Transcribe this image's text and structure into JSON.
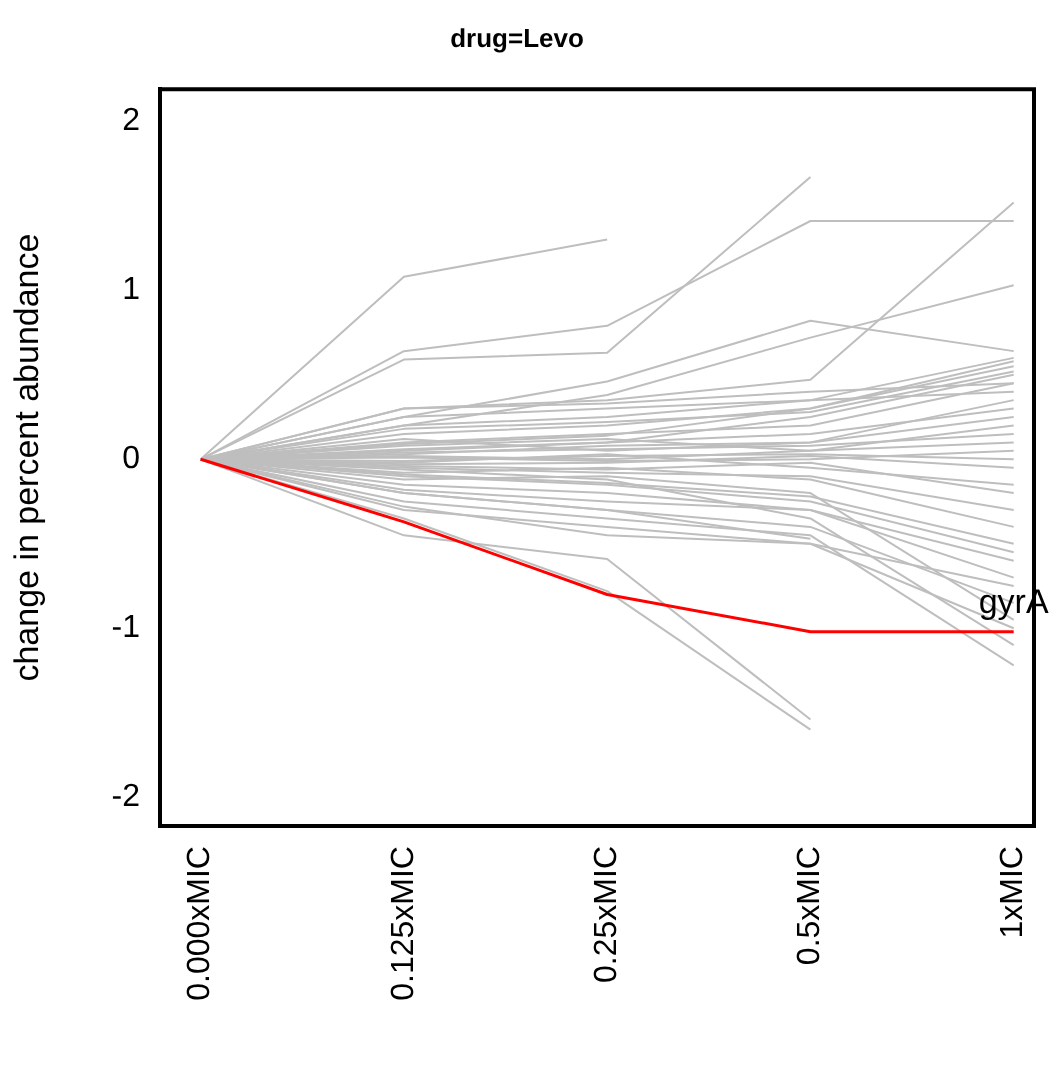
{
  "chart_data": {
    "type": "line",
    "title": "drug=Levo",
    "ylabel": "change in percent abundance",
    "categories": [
      "0.000xMIC",
      "0.125xMIC",
      "0.25xMIC",
      "0.5xMIC",
      "1xMIC"
    ],
    "ylim": [
      -2.17,
      2.19
    ],
    "yticks": [
      -2,
      -1,
      0,
      1,
      2
    ],
    "legend": false,
    "grid": false,
    "series": [
      {
        "name": "gyrA",
        "color": "#ff0000",
        "values": [
          0,
          -0.37,
          -0.8,
          -1.02,
          -1.02
        ]
      },
      {
        "color": "#bebebe",
        "values": [
          0,
          1.08,
          1.3,
          null,
          null
        ]
      },
      {
        "color": "#bebebe",
        "values": [
          0,
          0.59,
          0.63,
          1.67,
          null
        ]
      },
      {
        "color": "#bebebe",
        "values": [
          0,
          0.64,
          0.79,
          1.41,
          1.41
        ]
      },
      {
        "color": "#bebebe",
        "values": [
          0,
          0.3,
          0.35,
          0.47,
          1.52
        ]
      },
      {
        "color": "#bebebe",
        "values": [
          0,
          0.25,
          0.46,
          0.82,
          0.64
        ]
      },
      {
        "color": "#bebebe",
        "values": [
          0,
          0.2,
          0.38,
          0.72,
          1.03
        ]
      },
      {
        "color": "#bebebe",
        "values": [
          0,
          -0.45,
          -0.59,
          -1.54,
          null
        ]
      },
      {
        "color": "#bebebe",
        "values": [
          0,
          -0.35,
          -0.78,
          -1.6,
          null
        ]
      },
      {
        "color": "#bebebe",
        "values": [
          0,
          -0.2,
          -0.3,
          -0.47,
          null
        ]
      },
      {
        "color": "#bebebe",
        "values": [
          0,
          -0.28,
          -0.45,
          -0.5,
          -1.0
        ]
      },
      {
        "color": "#bebebe",
        "values": [
          0,
          0.05,
          0.1,
          0.15,
          0.3
        ]
      },
      {
        "color": "#bebebe",
        "values": [
          0,
          -0.05,
          -0.08,
          -0.1,
          -0.3
        ]
      },
      {
        "color": "#bebebe",
        "values": [
          0,
          0.1,
          0.15,
          0.2,
          0.45
        ]
      },
      {
        "color": "#bebebe",
        "values": [
          0,
          -0.1,
          -0.15,
          -0.25,
          -0.55
        ]
      },
      {
        "color": "#bebebe",
        "values": [
          0,
          0.02,
          0.0,
          0.05,
          0.1
        ]
      },
      {
        "color": "#bebebe",
        "values": [
          0,
          -0.02,
          0.03,
          -0.05,
          -0.15
        ]
      },
      {
        "color": "#bebebe",
        "values": [
          0,
          0.15,
          0.2,
          0.3,
          0.55
        ]
      },
      {
        "color": "#bebebe",
        "values": [
          0,
          -0.15,
          -0.2,
          -0.3,
          -0.7
        ]
      },
      {
        "color": "#bebebe",
        "values": [
          0,
          0.08,
          0.12,
          0.05,
          0.2
        ]
      },
      {
        "color": "#bebebe",
        "values": [
          0,
          -0.08,
          -0.05,
          -0.12,
          -0.4
        ]
      },
      {
        "color": "#bebebe",
        "values": [
          0,
          0.2,
          0.25,
          0.35,
          0.6
        ]
      },
      {
        "color": "#bebebe",
        "values": [
          0,
          -0.2,
          -0.3,
          -0.4,
          -0.85
        ]
      },
      {
        "color": "#bebebe",
        "values": [
          0,
          0.12,
          0.05,
          0.1,
          0.35
        ]
      },
      {
        "color": "#bebebe",
        "values": [
          0,
          -0.12,
          -0.1,
          -0.2,
          -0.95
        ]
      },
      {
        "color": "#bebebe",
        "values": [
          0,
          0.03,
          0.08,
          0.1,
          0.25
        ]
      },
      {
        "color": "#bebebe",
        "values": [
          0,
          -0.03,
          -0.02,
          0.02,
          -0.05
        ]
      },
      {
        "color": "#bebebe",
        "values": [
          0,
          0.06,
          0.1,
          0.25,
          0.5
        ]
      },
      {
        "color": "#bebebe",
        "values": [
          0,
          -0.06,
          -0.12,
          -0.35,
          -1.1
        ]
      },
      {
        "color": "#bebebe",
        "values": [
          0,
          0.25,
          0.3,
          0.35,
          0.4
        ]
      },
      {
        "color": "#bebebe",
        "values": [
          0,
          -0.25,
          -0.35,
          -0.45,
          -1.22
        ]
      },
      {
        "color": "#bebebe",
        "values": [
          0,
          0.04,
          0.06,
          0.08,
          0.15
        ]
      },
      {
        "color": "#bebebe",
        "values": [
          0,
          -0.04,
          -0.06,
          -0.02,
          -0.2
        ]
      },
      {
        "color": "#bebebe",
        "values": [
          0,
          0.18,
          0.22,
          0.28,
          0.52
        ]
      },
      {
        "color": "#bebebe",
        "values": [
          0,
          -0.18,
          -0.25,
          -0.3,
          -0.6
        ]
      },
      {
        "color": "#bebebe",
        "values": [
          0,
          0.01,
          -0.01,
          0.0,
          0.05
        ]
      },
      {
        "color": "#bebebe",
        "values": [
          0,
          -0.01,
          0.02,
          0.03,
          0.0
        ]
      },
      {
        "color": "#bebebe",
        "values": [
          0,
          0.09,
          0.14,
          0.3,
          0.58
        ]
      },
      {
        "color": "#bebebe",
        "values": [
          0,
          -0.09,
          -0.14,
          -0.22,
          -0.5
        ]
      },
      {
        "color": "#bebebe",
        "values": [
          0,
          0.3,
          0.33,
          0.4,
          0.45
        ]
      },
      {
        "color": "#bebebe",
        "values": [
          0,
          -0.3,
          -0.4,
          -0.5,
          -0.75
        ]
      }
    ]
  }
}
